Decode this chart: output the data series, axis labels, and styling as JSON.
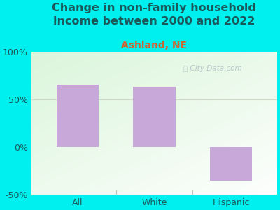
{
  "title": "Change in non-family household\nincome between 2000 and 2022",
  "subtitle": "Ashland, NE",
  "categories": [
    "All",
    "White",
    "Hispanic"
  ],
  "values": [
    65,
    63,
    -35
  ],
  "bar_color": "#c8a8d8",
  "background_outer": "#00efef",
  "background_inner_top_left": "#d8f0d0",
  "background_inner_bottom_right": "#f8fef8",
  "ylim": [
    -50,
    100
  ],
  "yticks": [
    -50,
    0,
    50,
    100
  ],
  "ytick_labels": [
    "-50%",
    "0%",
    "50%",
    "100%"
  ],
  "title_fontsize": 11.5,
  "subtitle_fontsize": 10,
  "subtitle_color": "#cc6633",
  "title_color": "#1a5a5a",
  "axis_label_fontsize": 9,
  "watermark": "City-Data.com",
  "watermark_color": "#a8b8c0",
  "ref_line_color": "#d0d8c8",
  "bottom_line_color": "#b0b8b0",
  "divider_color": "#b8c8b8"
}
